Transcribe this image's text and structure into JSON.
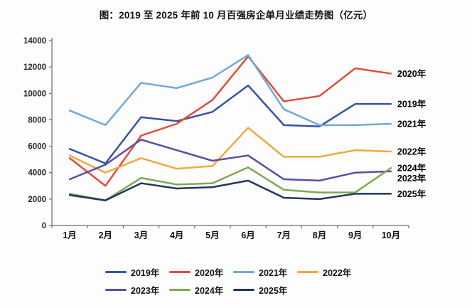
{
  "chart_data": {
    "type": "line",
    "title": "图：2019 至 2025 年前 10 月百强房企单月业绩走势图（亿元）",
    "categories": [
      "1月",
      "2月",
      "3月",
      "4月",
      "5月",
      "6月",
      "7月",
      "8月",
      "9月",
      "10月"
    ],
    "series": [
      {
        "name": "2019年",
        "color": "#3454a4",
        "values": [
          5800,
          4700,
          8200,
          7900,
          8600,
          10600,
          7600,
          7500,
          9200,
          9200
        ]
      },
      {
        "name": "2020年",
        "color": "#df4e3b",
        "values": [
          5100,
          3000,
          6800,
          7700,
          9500,
          12800,
          9400,
          9800,
          11900,
          11500
        ]
      },
      {
        "name": "2021年",
        "color": "#72a8d9",
        "values": [
          8700,
          7600,
          10800,
          10400,
          11200,
          12900,
          8800,
          7600,
          7600,
          7700
        ]
      },
      {
        "name": "2022年",
        "color": "#f1a83d",
        "values": [
          5300,
          4000,
          5100,
          4300,
          4500,
          7400,
          5200,
          5200,
          5700,
          5600
        ]
      },
      {
        "name": "2023年",
        "color": "#5b4da1",
        "values": [
          3500,
          4600,
          6500,
          5700,
          4900,
          5300,
          3500,
          3400,
          4000,
          4100
        ]
      },
      {
        "name": "2024年",
        "color": "#7fa953",
        "values": [
          2400,
          1900,
          3600,
          3100,
          3200,
          4400,
          2700,
          2500,
          2500,
          4350
        ]
      },
      {
        "name": "2025年",
        "color": "#22375c",
        "values": [
          2300,
          1900,
          3200,
          2800,
          2900,
          3400,
          2100,
          2000,
          2400,
          2400
        ]
      }
    ],
    "ylim": [
      0,
      14000
    ],
    "yticks": [
      0,
      2000,
      4000,
      6000,
      8000,
      10000,
      12000,
      14000
    ],
    "grid": false,
    "legend_position": "bottom",
    "legend_rows": [
      [
        "2019年",
        "2020年",
        "2021年",
        "2022年"
      ],
      [
        "2023年",
        "2024年",
        "2025年"
      ]
    ],
    "end_labels": [
      "2020年",
      "2019年",
      "2021年",
      "2022年",
      "2024年",
      "2023年",
      "2025年"
    ],
    "axis_color": "#6b6b6b",
    "tick_label_color": "#262626"
  }
}
